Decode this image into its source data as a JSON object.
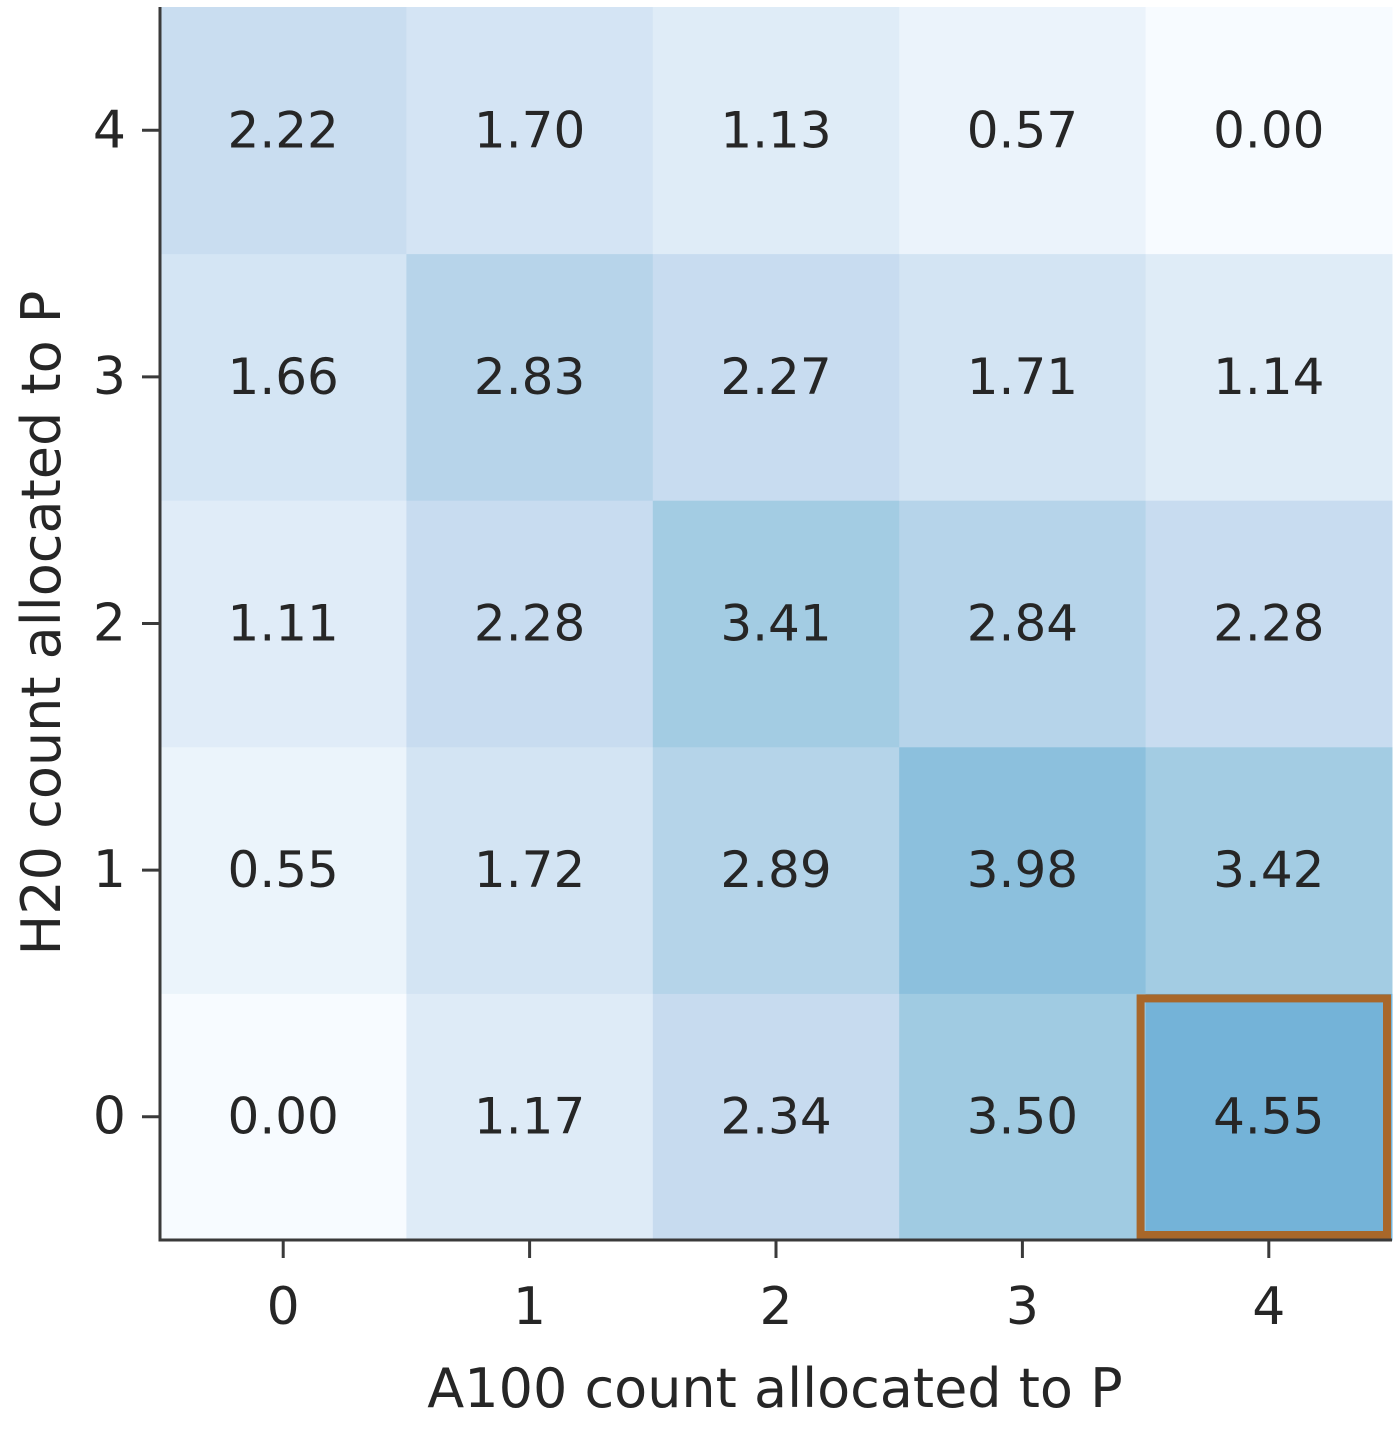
{
  "chart_data": {
    "type": "heatmap",
    "title": "",
    "xlabel": "A100 count allocated to P",
    "ylabel": "H20 count allocated to P",
    "x_categories": [
      "0",
      "1",
      "2",
      "3",
      "4"
    ],
    "y_categories": [
      "0",
      "1",
      "2",
      "3",
      "4"
    ],
    "values": [
      [
        0.0,
        1.17,
        2.34,
        3.5,
        4.55
      ],
      [
        0.55,
        1.72,
        2.89,
        3.98,
        3.42
      ],
      [
        1.11,
        2.28,
        3.41,
        2.84,
        2.28
      ],
      [
        1.66,
        2.83,
        2.27,
        1.71,
        1.14
      ],
      [
        2.22,
        1.7,
        1.13,
        0.57,
        0.0
      ]
    ],
    "value_labels": [
      [
        "0.00",
        "1.17",
        "2.34",
        "3.50",
        "4.55"
      ],
      [
        "0.55",
        "1.72",
        "2.89",
        "3.98",
        "3.42"
      ],
      [
        "1.11",
        "2.28",
        "3.41",
        "2.84",
        "2.28"
      ],
      [
        "1.66",
        "2.83",
        "2.27",
        "1.71",
        "1.14"
      ],
      [
        "2.22",
        "1.70",
        "1.13",
        "0.57",
        "0.00"
      ]
    ],
    "colormap": "Blues",
    "color_range": [
      0,
      9.5
    ],
    "highlight": {
      "x": "4",
      "y": "0",
      "color": "#a8672a"
    },
    "grid": false,
    "colorbar": false
  }
}
